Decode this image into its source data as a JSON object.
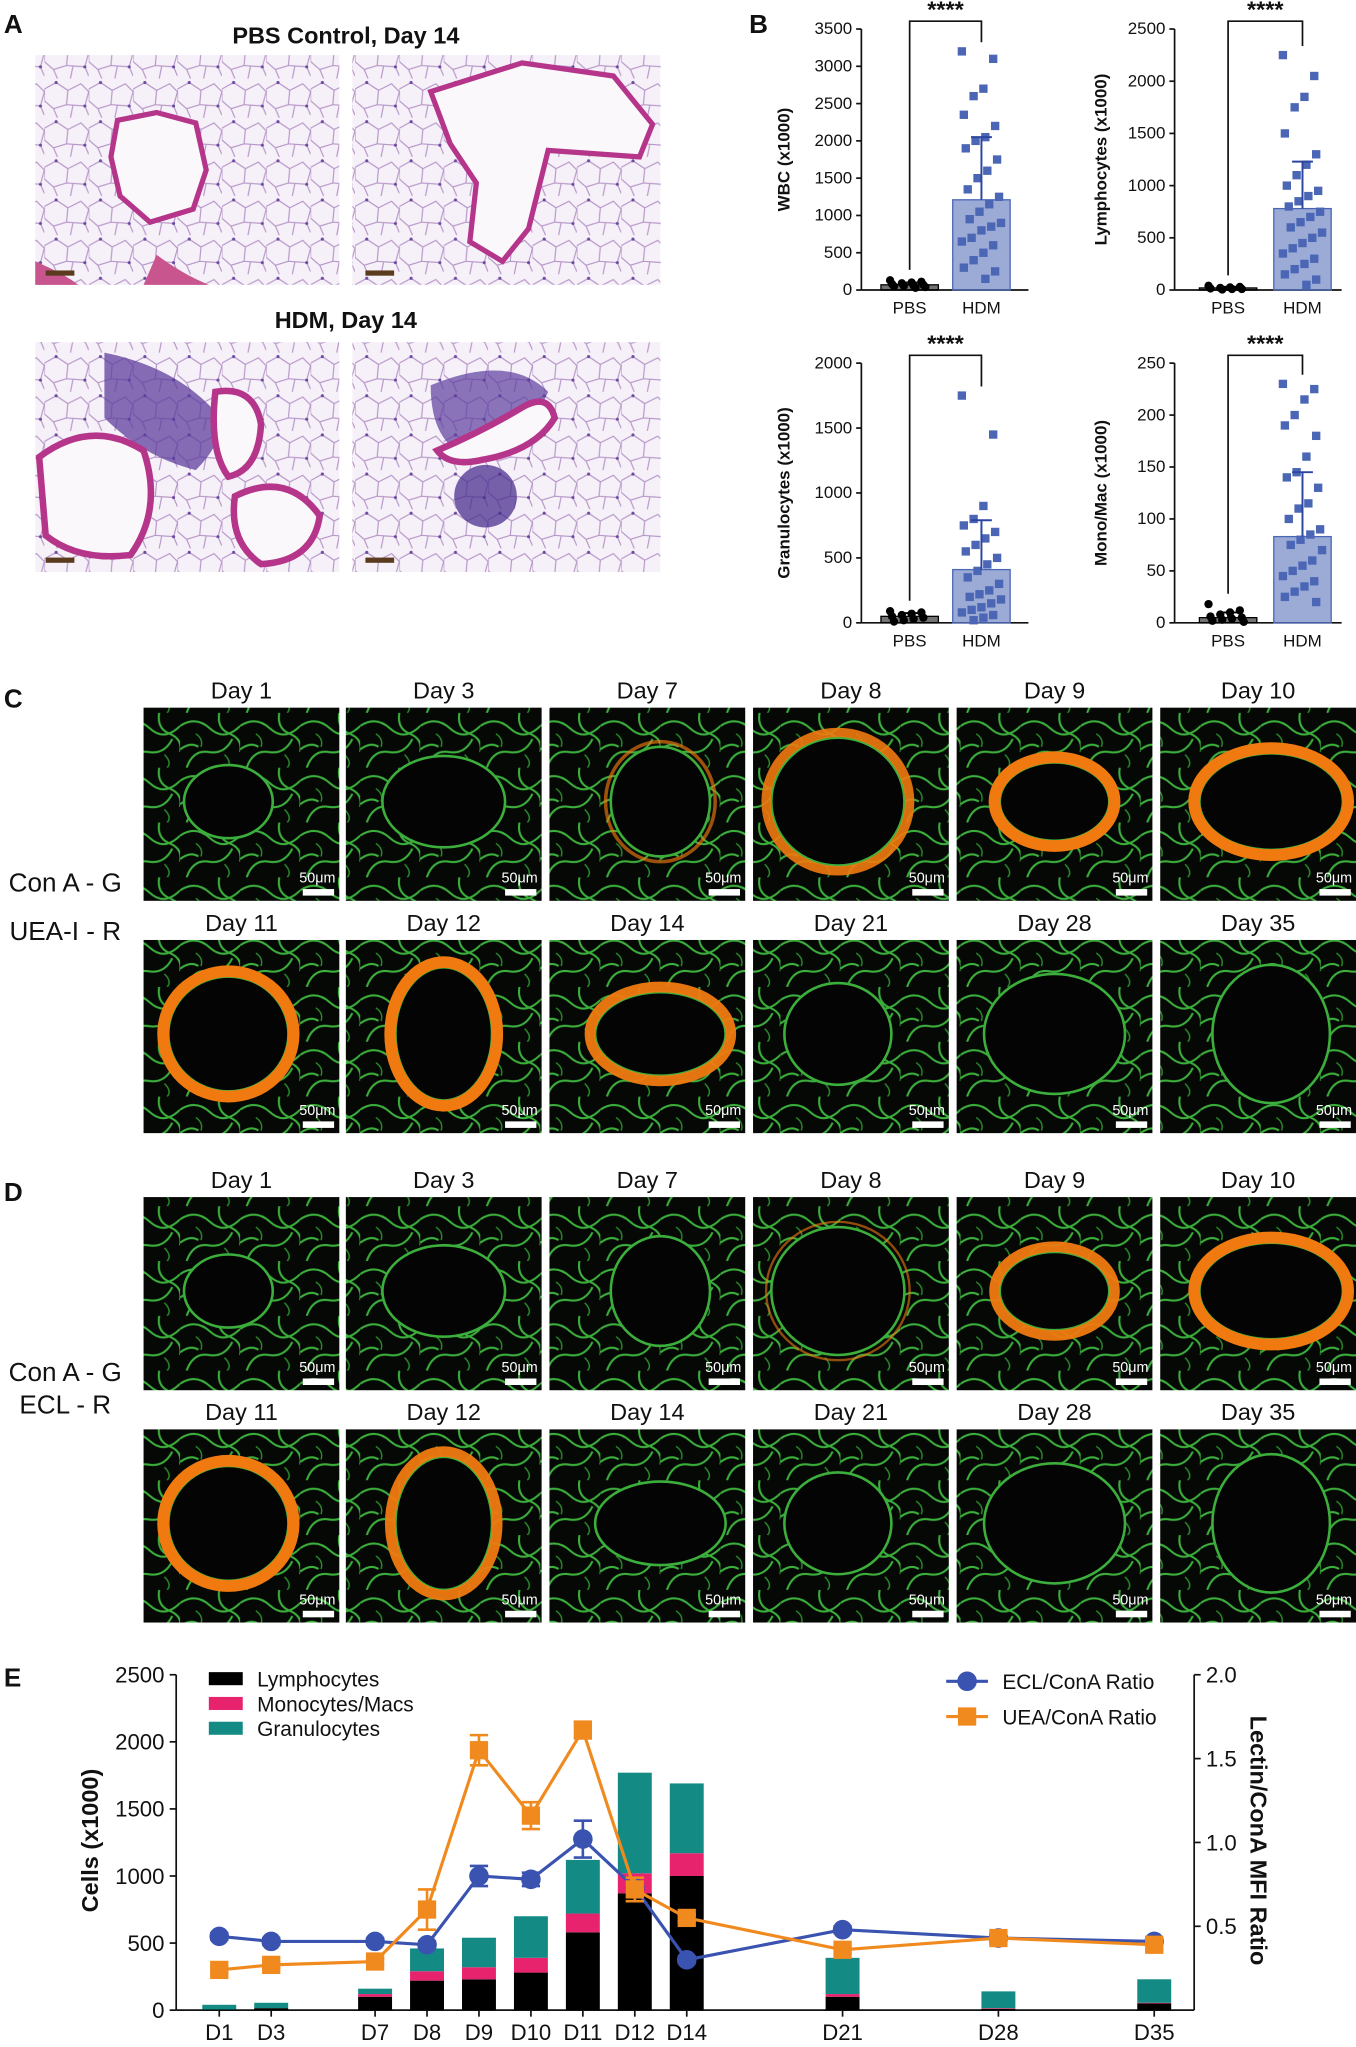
{
  "panel_letters": [
    "A",
    "B",
    "C",
    "D",
    "E"
  ],
  "histology": {
    "titles": [
      "PBS Control, Day 14",
      "HDM, Day 14"
    ]
  },
  "lectin_panels": [
    {
      "side_labels": [
        "Con A - G",
        "UEA-I - R"
      ],
      "days": [
        "Day 1",
        "Day 3",
        "Day 7",
        "Day 8",
        "Day 9",
        "Day 10",
        "Day 11",
        "Day 12",
        "Day 14",
        "Day 21",
        "Day 28",
        "Day 35"
      ],
      "scale_label": "50μm"
    },
    {
      "side_labels": [
        "Con A - G",
        "ECL - R"
      ],
      "days": [
        "Day 1",
        "Day 3",
        "Day 7",
        "Day 8",
        "Day 9",
        "Day 10",
        "Day 11",
        "Day 12",
        "Day 14",
        "Day 21",
        "Day 28",
        "Day 35"
      ],
      "scale_label": "50μm"
    }
  ],
  "chart_data": [
    {
      "type": "bar",
      "ylabel": "WBC (x1000)",
      "categories": [
        "PBS",
        "HDM"
      ],
      "values": [
        70,
        1210
      ],
      "errors": [
        30,
        840
      ],
      "colors": [
        "#000000",
        "#4a66b5"
      ],
      "points": [
        [
          130,
          110,
          100,
          90,
          80,
          70,
          60,
          55,
          50,
          40,
          30
        ],
        [
          3200,
          3100,
          2700,
          2600,
          2350,
          2200,
          2050,
          2000,
          1900,
          1750,
          1600,
          1500,
          1350,
          1250,
          1150,
          1050,
          950,
          900,
          850,
          800,
          700,
          650,
          600,
          500,
          400,
          300,
          250,
          150
        ]
      ],
      "significance": "****",
      "ylim": [
        0,
        3500
      ],
      "yticks": [
        0,
        500,
        1000,
        1500,
        2000,
        2500,
        3000,
        3500
      ]
    },
    {
      "type": "bar",
      "ylabel": "Lymphocytes (x1000)",
      "categories": [
        "PBS",
        "HDM"
      ],
      "values": [
        20,
        780
      ],
      "errors": [
        10,
        450
      ],
      "colors": [
        "#000000",
        "#4a66b5"
      ],
      "points": [
        [
          40,
          30,
          25,
          20,
          15,
          10,
          10,
          5
        ],
        [
          2250,
          2050,
          1850,
          1750,
          1500,
          1300,
          1200,
          1100,
          1000,
          950,
          900,
          850,
          800,
          750,
          700,
          650,
          600,
          550,
          500,
          450,
          400,
          350,
          300,
          250,
          200,
          150,
          100,
          50
        ]
      ],
      "significance": "****",
      "ylim": [
        0,
        2500
      ],
      "yticks": [
        0,
        500,
        1000,
        1500,
        2000,
        2500
      ]
    },
    {
      "type": "bar",
      "ylabel": "Granulocytes (x1000)",
      "categories": [
        "PBS",
        "HDM"
      ],
      "values": [
        50,
        410
      ],
      "errors": [
        25,
        380
      ],
      "colors": [
        "#000000",
        "#4a66b5"
      ],
      "points": [
        [
          90,
          80,
          70,
          60,
          50,
          40,
          30,
          20,
          10
        ],
        [
          1750,
          1450,
          900,
          800,
          750,
          700,
          650,
          600,
          550,
          500,
          450,
          400,
          350,
          300,
          250,
          220,
          200,
          180,
          150,
          120,
          100,
          80,
          60,
          40,
          20
        ]
      ],
      "significance": "****",
      "ylim": [
        0,
        2000
      ],
      "yticks": [
        0,
        500,
        1000,
        1500,
        2000
      ]
    },
    {
      "type": "bar",
      "ylabel": "Mono/Mac (x1000)",
      "categories": [
        "PBS",
        "HDM"
      ],
      "values": [
        5,
        83
      ],
      "errors": [
        5,
        62
      ],
      "colors": [
        "#000000",
        "#4a66b5"
      ],
      "points": [
        [
          18,
          12,
          10,
          8,
          6,
          5,
          4,
          3,
          2,
          1
        ],
        [
          230,
          225,
          215,
          200,
          190,
          180,
          160,
          145,
          140,
          130,
          115,
          110,
          100,
          90,
          85,
          80,
          75,
          70,
          60,
          55,
          50,
          45,
          40,
          35,
          30,
          25,
          20
        ]
      ],
      "significance": "****",
      "ylim": [
        0,
        250
      ],
      "yticks": [
        0,
        50,
        100,
        150,
        200,
        250
      ]
    },
    {
      "type": "combo",
      "ylabel": "Cells (x1000)",
      "y2label": "Lectin/ConA MFI Ratio",
      "categories": [
        "D1",
        "D3",
        "D7",
        "D8",
        "D9",
        "D10",
        "D11",
        "D12",
        "D14",
        "D21",
        "D28",
        "D35"
      ],
      "series": [
        {
          "name": "Lymphocytes",
          "color": "#000000",
          "values": [
            5,
            15,
            100,
            220,
            230,
            280,
            580,
            870,
            1000,
            100,
            10,
            50
          ]
        },
        {
          "name": "Monocytes/Macs",
          "color": "#e8236e",
          "values": [
            0,
            0,
            20,
            70,
            90,
            110,
            140,
            150,
            170,
            20,
            5,
            5
          ]
        },
        {
          "name": "Granulocytes",
          "color": "#138a84",
          "values": [
            35,
            40,
            40,
            170,
            220,
            310,
            400,
            750,
            520,
            270,
            125,
            175
          ]
        },
        {
          "name": "ECL/ConA Ratio",
          "color": "#3a52b0",
          "axis": "y2",
          "marker": "circle",
          "values": [
            0.44,
            0.41,
            0.41,
            0.39,
            0.8,
            0.78,
            1.02,
            0.73,
            0.3,
            0.48,
            0.43,
            0.41
          ],
          "errors": [
            0.02,
            0.02,
            0.02,
            0.02,
            0.06,
            0.04,
            0.11,
            0.03,
            0.02,
            0.02,
            0.02,
            0.02
          ]
        },
        {
          "name": "UEA/ConA Ratio",
          "color": "#f08a1e",
          "axis": "y2",
          "marker": "square",
          "values": [
            0.24,
            0.27,
            0.29,
            0.6,
            1.55,
            1.16,
            1.67,
            0.72,
            0.55,
            0.36,
            0.43,
            0.39
          ],
          "errors": [
            0.02,
            0.02,
            0.02,
            0.12,
            0.09,
            0.08,
            0.05,
            0.07,
            0.02,
            0.02,
            0.03,
            0.03
          ]
        }
      ],
      "ylim": [
        0,
        2500
      ],
      "yticks": [
        0,
        500,
        1000,
        1500,
        2000,
        2500
      ],
      "y2lim": [
        0,
        2
      ],
      "y2ticks": [
        0.5,
        {
          "value": 1,
          "label": "1.0"
        },
        1.5,
        {
          "value": 2,
          "label": "2.0"
        }
      ]
    }
  ]
}
